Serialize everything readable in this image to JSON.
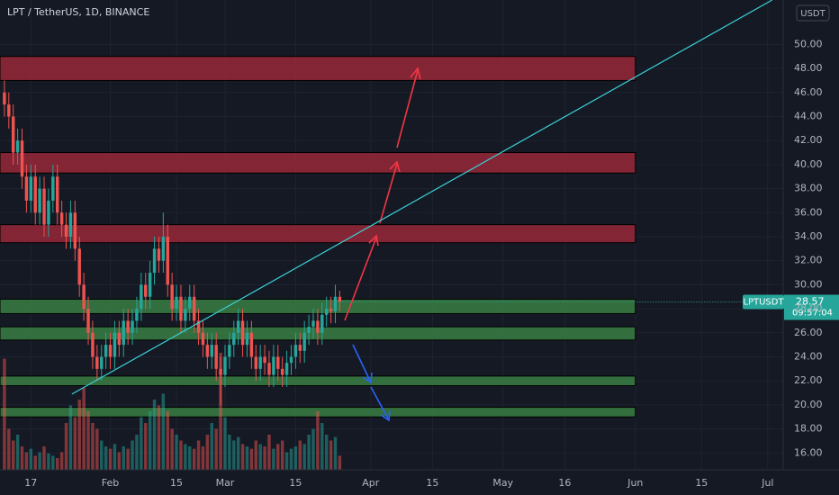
{
  "chart_data": {
    "type": "candlestick",
    "title": "LPT / TetherUS, 1D, BINANCE",
    "currency": "USDT",
    "symbol": "LPTUSDT",
    "last_price": 28.57,
    "countdown": "09:57:04",
    "up_color": "#26a69a",
    "down_color": "#ef5350",
    "xlim": [
      -1,
      176.5
    ],
    "ylim": [
      14.6,
      53.7
    ],
    "y3lim": [
      0,
      100
    ],
    "grid": true,
    "xticks": [
      {
        "value": 6,
        "label": "17"
      },
      {
        "value": 24,
        "label": "Feb"
      },
      {
        "value": 39,
        "label": "15"
      },
      {
        "value": 50,
        "label": "Mar"
      },
      {
        "value": 66,
        "label": "15"
      },
      {
        "value": 83,
        "label": "Apr"
      },
      {
        "value": 97,
        "label": "15"
      },
      {
        "value": 113,
        "label": "May"
      },
      {
        "value": 127,
        "label": "16"
      },
      {
        "value": 143,
        "label": "Jun"
      },
      {
        "value": 158,
        "label": "15"
      },
      {
        "value": 173,
        "label": "Jul"
      }
    ],
    "yticks": [
      {
        "value": 16,
        "label": "16.00"
      },
      {
        "value": 18,
        "label": "18.00"
      },
      {
        "value": 20,
        "label": "20.00"
      },
      {
        "value": 22,
        "label": "22.00"
      },
      {
        "value": 24,
        "label": "24.00"
      },
      {
        "value": 26,
        "label": "26.00"
      },
      {
        "value": 28,
        "label": "28.00"
      },
      {
        "value": 30,
        "label": "30.00"
      },
      {
        "value": 32,
        "label": "32.00"
      },
      {
        "value": 34,
        "label": "34.00"
      },
      {
        "value": 36,
        "label": "36.00"
      },
      {
        "value": 38,
        "label": "38.00"
      },
      {
        "value": 40,
        "label": "40.00"
      },
      {
        "value": 42,
        "label": "42.00"
      },
      {
        "value": 44,
        "label": "44.00"
      },
      {
        "value": 46,
        "label": "46.00"
      },
      {
        "value": 48,
        "label": "48.00"
      },
      {
        "value": 50,
        "label": "50.00"
      }
    ],
    "open": [
      46,
      45,
      44,
      41,
      42,
      39,
      37,
      39,
      36,
      38,
      35,
      37,
      39,
      36,
      35,
      34,
      36,
      33,
      30,
      28,
      26,
      24,
      23,
      24,
      25,
      24,
      26,
      25,
      27,
      26,
      27,
      28,
      30,
      29,
      31,
      33,
      32,
      34,
      30,
      28,
      29,
      27,
      28,
      29,
      27,
      26,
      25,
      24,
      25,
      23,
      22.5,
      24,
      25,
      26,
      27,
      25,
      26,
      24,
      23,
      24,
      23.5,
      22.5,
      24,
      23,
      22.5,
      23.5,
      24,
      25,
      24.5,
      26,
      26.5,
      27,
      26,
      27.5,
      28,
      27.8,
      29
    ],
    "high": [
      47,
      46,
      45,
      43,
      43,
      40,
      40,
      40,
      39,
      39,
      38,
      40,
      40,
      37,
      36,
      37,
      37,
      34,
      31,
      29,
      27,
      25,
      25,
      26,
      26,
      27,
      27,
      28,
      28,
      28,
      29,
      31,
      31,
      32,
      34,
      34,
      36,
      35,
      31,
      30,
      30,
      29,
      30,
      30,
      28,
      27,
      26,
      26,
      26,
      24,
      25,
      26,
      27,
      28,
      28,
      27,
      27,
      25,
      25,
      25,
      24.5,
      25,
      25,
      24,
      24.5,
      25,
      26,
      26,
      27,
      27.5,
      28,
      28,
      28.5,
      29,
      29,
      30,
      29.5
    ],
    "low": [
      44,
      43,
      40,
      40,
      38,
      36,
      36,
      35,
      35,
      34,
      34,
      36,
      35,
      34,
      33,
      33,
      32,
      29,
      27,
      25,
      23,
      22,
      22,
      23,
      23,
      23,
      24,
      24,
      25,
      25,
      26,
      27,
      28,
      28,
      30,
      31,
      31,
      29,
      27,
      27,
      26,
      26,
      27,
      26,
      25,
      24,
      23,
      23,
      22,
      20,
      21.5,
      23,
      24,
      25,
      24,
      24,
      23,
      22,
      22,
      22.5,
      21.5,
      21.5,
      22,
      21.5,
      21.5,
      22.5,
      23,
      23.5,
      23.5,
      25,
      25.5,
      25,
      25,
      26.5,
      26.8,
      26.8,
      27.8
    ],
    "close": [
      45,
      44,
      41,
      42,
      39,
      37,
      39,
      36,
      38,
      35,
      37,
      39,
      36,
      35,
      34,
      36,
      33,
      30,
      28,
      26,
      24,
      23,
      24,
      25,
      24,
      26,
      25,
      27,
      26,
      27,
      28,
      30,
      29,
      31,
      33,
      32,
      34,
      30,
      28,
      29,
      27,
      28,
      29,
      27,
      26,
      25,
      24,
      25,
      23,
      22.5,
      24,
      25,
      26,
      27,
      25,
      26,
      24,
      23,
      24,
      23.5,
      22.5,
      24,
      23,
      22.5,
      23.5,
      24,
      25,
      24.5,
      26,
      26.5,
      27,
      26,
      27.5,
      28,
      27.8,
      29,
      28.57
    ],
    "volume": [
      95,
      35,
      25,
      30,
      20,
      15,
      18,
      12,
      15,
      20,
      14,
      12,
      10,
      15,
      40,
      55,
      45,
      60,
      70,
      50,
      40,
      35,
      25,
      20,
      18,
      22,
      15,
      20,
      18,
      25,
      30,
      45,
      40,
      50,
      60,
      55,
      65,
      50,
      35,
      30,
      25,
      22,
      20,
      18,
      25,
      20,
      30,
      40,
      35,
      100,
      45,
      30,
      25,
      28,
      22,
      20,
      18,
      25,
      22,
      20,
      30,
      18,
      22,
      25,
      15,
      18,
      20,
      25,
      22,
      30,
      35,
      50,
      40,
      30,
      25,
      28,
      12
    ],
    "zone_x": [
      -1,
      143
    ],
    "zones": [
      {
        "low": 47,
        "high": 49,
        "color": "#a8293a"
      },
      {
        "low": 39.3,
        "high": 41,
        "color": "#a8293a"
      },
      {
        "low": 33.5,
        "high": 35,
        "color": "#a8293a"
      },
      {
        "low": 27.6,
        "high": 28.8,
        "color": "#3d8b47"
      },
      {
        "low": 25.4,
        "high": 26.5,
        "color": "#3d8b47"
      },
      {
        "low": 21.6,
        "high": 22.4,
        "color": "#3d8b47"
      },
      {
        "low": 19,
        "high": 19.8,
        "color": "#3d8b47"
      }
    ],
    "trendline": {
      "x": [
        15.3,
        174
      ],
      "y": [
        20.9,
        53.7
      ],
      "color": "#3ad1d8"
    }
  }
}
